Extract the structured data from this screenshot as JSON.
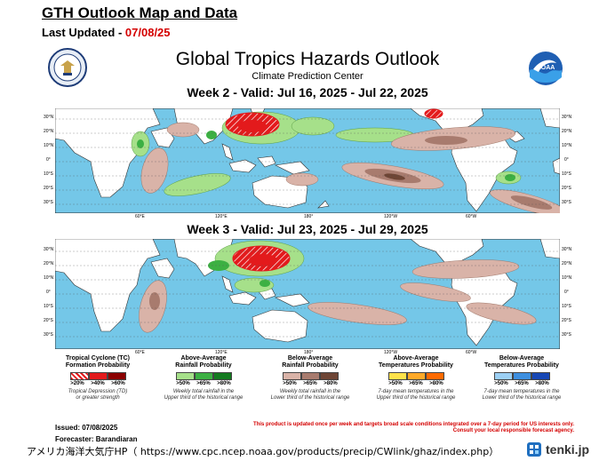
{
  "header": {
    "title": "GTH Outlook Map and Data",
    "updated_label": "Last Updated - ",
    "updated_date": "07/08/25"
  },
  "panel": {
    "title": "Global Tropics Hazards Outlook",
    "subtitle": "Climate Prediction Center",
    "week2_label": "Week 2 - Valid: Jul 16, 2025 - Jul 22, 2025",
    "week3_label": "Week 3 - Valid: Jul 23, 2025 - Jul 29, 2025",
    "lat_ticks": [
      "30°N",
      "20°N",
      "10°N",
      "0°",
      "10°S",
      "20°S",
      "30°S"
    ],
    "lon_ticks": [
      "60°E",
      "120°E",
      "180°",
      "120°W",
      "60°W"
    ]
  },
  "legend": {
    "tc": {
      "title_1": "Tropical Cyclone (TC)",
      "title_2": "Formation Probability",
      "labels": [
        ">20%",
        ">40%",
        ">60%"
      ],
      "note_1": "Tropical Depression (TD)",
      "note_2": "or greater strength",
      "colors": [
        "#f4a0a0",
        "#e31a1c",
        "#8b0000"
      ]
    },
    "rain_above": {
      "title_1": "Above-Average",
      "title_2": "Rainfall Probability",
      "labels": [
        ">50%",
        ">65%",
        ">80%"
      ],
      "note_1": "Weekly total rainfall in the",
      "note_2": "Upper third of the historical range",
      "colors": [
        "#a6e08a",
        "#3cb043",
        "#137a1f"
      ]
    },
    "rain_below": {
      "title_1": "Below-Average",
      "title_2": "Rainfall Probability",
      "labels": [
        ">50%",
        ">65%",
        ">80%"
      ],
      "note_1": "Weekly total rainfall in the",
      "note_2": "Lower third of the historical range",
      "colors": [
        "#d9b3a8",
        "#a87b6e",
        "#6e4535"
      ]
    },
    "temp_above": {
      "title_1": "Above-Average",
      "title_2": "Temperatures Probability",
      "labels": [
        ">50%",
        ">65%",
        ">80%"
      ],
      "note_1": "7-day mean temperatures in the",
      "note_2": "Upper third of the historical range",
      "colors": [
        "#ffe24a",
        "#ffa928",
        "#ff6a00"
      ]
    },
    "temp_below": {
      "title_1": "Below-Average",
      "title_2": "Temperatures Probability",
      "labels": [
        ">50%",
        ">65%",
        ">80%"
      ],
      "note_1": "7-day mean temperatures in the",
      "note_2": "Lower third of the historical range",
      "colors": [
        "#9cd0f5",
        "#3d8fe0",
        "#1747b5"
      ]
    }
  },
  "footer": {
    "issued": "Issued: 07/08/2025",
    "forecaster": "Forecaster: Barandiaran",
    "disclaimer_1": "This product is updated once per week and targets broad scale conditions integrated over a 7-day period for US interests only.",
    "disclaimer_2": "Consult your local responsible forecast agency.",
    "source": "アメリカ海洋大気庁HP（ https://www.cpc.ncep.noaa.gov/products/precip/CWlink/ghaz/index.php）",
    "brand": "tenki.jp"
  },
  "colors": {
    "ocean": "#74c7e8",
    "land": "#ffffff",
    "date_red": "#d40000"
  }
}
